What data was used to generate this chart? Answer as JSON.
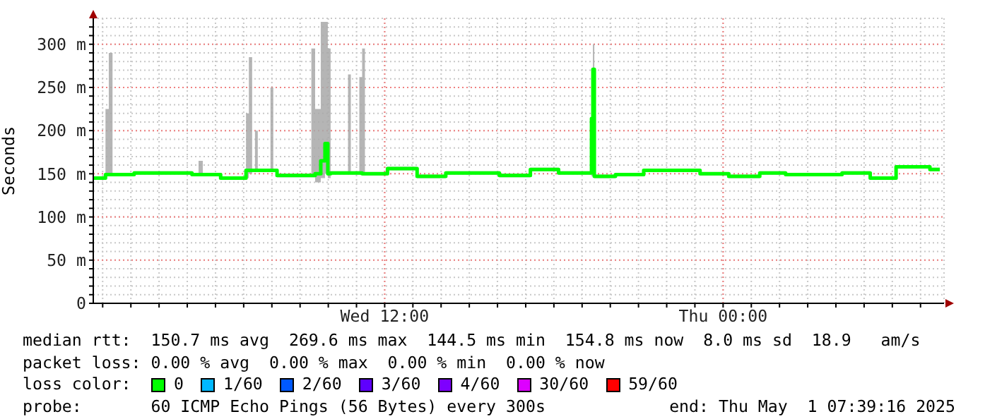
{
  "chart_data": {
    "type": "step",
    "ylabel": "Seconds",
    "legend_title": "loss color:",
    "legend": "bottom",
    "grid": true,
    "marker": "none",
    "line_style": "solid",
    "xlim": [
      "2025-04-30T01:40",
      "2025-05-01T07:50"
    ],
    "xticks": [
      {
        "value": "2025-04-30T02:00",
        "label": null
      },
      {
        "value": "2025-04-30T03:00",
        "label": null
      },
      {
        "value": "2025-04-30T04:00",
        "label": null
      },
      {
        "value": "2025-04-30T05:00",
        "label": null
      },
      {
        "value": "2025-04-30T06:00",
        "label": null
      },
      {
        "value": "2025-04-30T07:00",
        "label": null
      },
      {
        "value": "2025-04-30T08:00",
        "label": null
      },
      {
        "value": "2025-04-30T09:00",
        "label": null
      },
      {
        "value": "2025-04-30T10:00",
        "label": null
      },
      {
        "value": "2025-04-30T11:00",
        "label": null
      },
      {
        "value": "2025-04-30T12:00",
        "label": "Wed 12:00"
      },
      {
        "value": "2025-04-30T13:00",
        "label": null
      },
      {
        "value": "2025-04-30T14:00",
        "label": null
      },
      {
        "value": "2025-04-30T15:00",
        "label": null
      },
      {
        "value": "2025-04-30T16:00",
        "label": null
      },
      {
        "value": "2025-04-30T17:00",
        "label": null
      },
      {
        "value": "2025-04-30T18:00",
        "label": null
      },
      {
        "value": "2025-04-30T19:00",
        "label": null
      },
      {
        "value": "2025-04-30T20:00",
        "label": null
      },
      {
        "value": "2025-04-30T21:00",
        "label": null
      },
      {
        "value": "2025-04-30T22:00",
        "label": null
      },
      {
        "value": "2025-04-30T23:00",
        "label": null
      },
      {
        "value": "2025-05-01T00:00",
        "label": "Thu 00:00"
      },
      {
        "value": "2025-05-01T01:00",
        "label": null
      },
      {
        "value": "2025-05-01T02:00",
        "label": null
      },
      {
        "value": "2025-05-01T03:00",
        "label": null
      },
      {
        "value": "2025-05-01T04:00",
        "label": null
      },
      {
        "value": "2025-05-01T05:00",
        "label": null
      },
      {
        "value": "2025-05-01T06:00",
        "label": null
      },
      {
        "value": "2025-05-01T07:00",
        "label": null
      }
    ],
    "ylim": [
      0,
      330
    ],
    "yticks": [
      0,
      {
        "value": 10,
        "label": null
      },
      {
        "value": 20,
        "label": null
      },
      {
        "value": 30,
        "label": null
      },
      {
        "value": 40,
        "label": null
      },
      {
        "value": 50,
        "label": "50 m"
      },
      {
        "value": 60,
        "label": null
      },
      {
        "value": 70,
        "label": null
      },
      {
        "value": 80,
        "label": null
      },
      {
        "value": 90,
        "label": null
      },
      {
        "value": 100,
        "label": "100 m"
      },
      {
        "value": 110,
        "label": null
      },
      {
        "value": 120,
        "label": null
      },
      {
        "value": 130,
        "label": null
      },
      {
        "value": 140,
        "label": null
      },
      {
        "value": 150,
        "label": "150 m"
      },
      {
        "value": 160,
        "label": null
      },
      {
        "value": 170,
        "label": null
      },
      {
        "value": 180,
        "label": null
      },
      {
        "value": 190,
        "label": null
      },
      {
        "value": 200,
        "label": "200 m"
      },
      {
        "value": 210,
        "label": null
      },
      {
        "value": 220,
        "label": null
      },
      {
        "value": 230,
        "label": null
      },
      {
        "value": 240,
        "label": null
      },
      {
        "value": 250,
        "label": "250 m"
      },
      {
        "value": 260,
        "label": null
      },
      {
        "value": 270,
        "label": null
      },
      {
        "value": 280,
        "label": null
      },
      {
        "value": 290,
        "label": null
      },
      {
        "value": 300,
        "label": "300 m"
      },
      {
        "value": 310,
        "label": null
      },
      {
        "value": 320,
        "label": null
      }
    ],
    "series": [
      {
        "name": "0",
        "color": "#00ff00",
        "x": [
          "2025-04-30T01:40",
          "2025-04-30T02:06",
          "2025-04-30T02:13",
          "2025-04-30T02:21",
          "2025-04-30T03:07",
          "2025-04-30T05:10",
          "2025-04-30T05:24",
          "2025-04-30T05:33",
          "2025-04-30T06:11",
          "2025-04-30T07:05",
          "2025-04-30T07:11",
          "2025-04-30T07:18",
          "2025-04-30T07:24",
          "2025-04-30T07:30",
          "2025-04-30T07:57",
          "2025-04-30T08:03",
          "2025-04-30T08:11",
          "2025-04-30T09:24",
          "2025-04-30T09:32",
          "2025-04-30T09:44",
          "2025-04-30T09:53",
          "2025-04-30T09:59",
          "2025-04-30T10:05",
          "2025-04-30T10:42",
          "2025-04-30T10:48",
          "2025-04-30T11:06",
          "2025-04-30T11:12",
          "2025-04-30T11:18",
          "2025-04-30T12:06",
          "2025-04-30T13:09",
          "2025-04-30T14:10",
          "2025-04-30T16:04",
          "2025-04-30T17:10",
          "2025-04-30T18:10",
          "2025-04-30T19:20",
          "2025-04-30T19:23",
          "2025-04-30T19:26",
          "2025-04-30T20:11",
          "2025-04-30T21:11",
          "2025-04-30T23:11",
          "2025-05-01T00:12",
          "2025-05-01T01:18",
          "2025-05-01T02:13",
          "2025-05-01T04:13",
          "2025-05-01T05:13",
          "2025-05-01T06:08",
          "2025-05-01T07:20",
          "2025-05-01T07:41"
        ],
        "values": [
          145,
          149,
          149,
          149,
          151,
          149,
          149,
          149,
          145,
          154,
          154,
          154,
          154,
          154,
          154,
          154,
          148,
          148,
          150,
          165,
          185,
          150,
          151,
          151,
          151,
          151,
          150,
          150,
          156,
          147,
          151,
          148,
          155,
          151,
          214,
          271,
          147,
          149,
          154,
          150,
          147,
          151,
          149,
          151,
          145,
          158,
          155,
          155
        ],
        "lower": [
          143,
          147,
          147,
          147,
          149,
          147,
          147,
          147,
          143,
          145,
          150,
          152,
          152,
          152,
          152,
          152,
          146,
          146,
          140,
          145,
          150,
          145,
          149,
          149,
          149,
          149,
          148,
          148,
          154,
          145,
          149,
          146,
          153,
          149,
          147,
          147,
          145,
          147,
          152,
          148,
          145,
          149,
          147,
          149,
          143,
          156,
          153,
          153
        ],
        "upper": [
          147,
          225,
          290,
          151,
          153,
          151,
          165,
          151,
          147,
          220,
          285,
          156,
          200,
          156,
          250,
          156,
          150,
          295,
          225,
          326,
          326,
          295,
          153,
          265,
          153,
          262,
          295,
          152,
          158,
          149,
          153,
          150,
          157,
          153,
          240,
          300,
          149,
          151,
          156,
          152,
          149,
          153,
          151,
          153,
          147,
          160,
          157,
          157
        ]
      },
      {
        "name": "1/60",
        "color": "#00b8ff",
        "values": [
          null
        ]
      },
      {
        "name": "2/60",
        "color": "#0059ff",
        "values": [
          null
        ]
      },
      {
        "name": "3/60",
        "color": "#5e00ff",
        "values": [
          null
        ]
      },
      {
        "name": "4/60",
        "color": "#7e00ff",
        "values": [
          null
        ]
      },
      {
        "name": "30/60",
        "color": "#dd00ff",
        "values": [
          null
        ]
      },
      {
        "name": "59/60",
        "color": "#ff0000",
        "values": [
          null
        ]
      }
    ],
    "annotations": [
      "median rtt:  150.7 ms avg  269.6 ms max  144.5 ms min  154.8 ms now  8.0 ms sd  18.9   am/s",
      "packet loss: 0.00 % avg  0.00 % max  0.00 % min  0.00 % now",
      "probe:       60 ICMP Echo Pings (56 Bytes) every 300s",
      "end: Thu May  1 07:39:16 2025"
    ]
  }
}
